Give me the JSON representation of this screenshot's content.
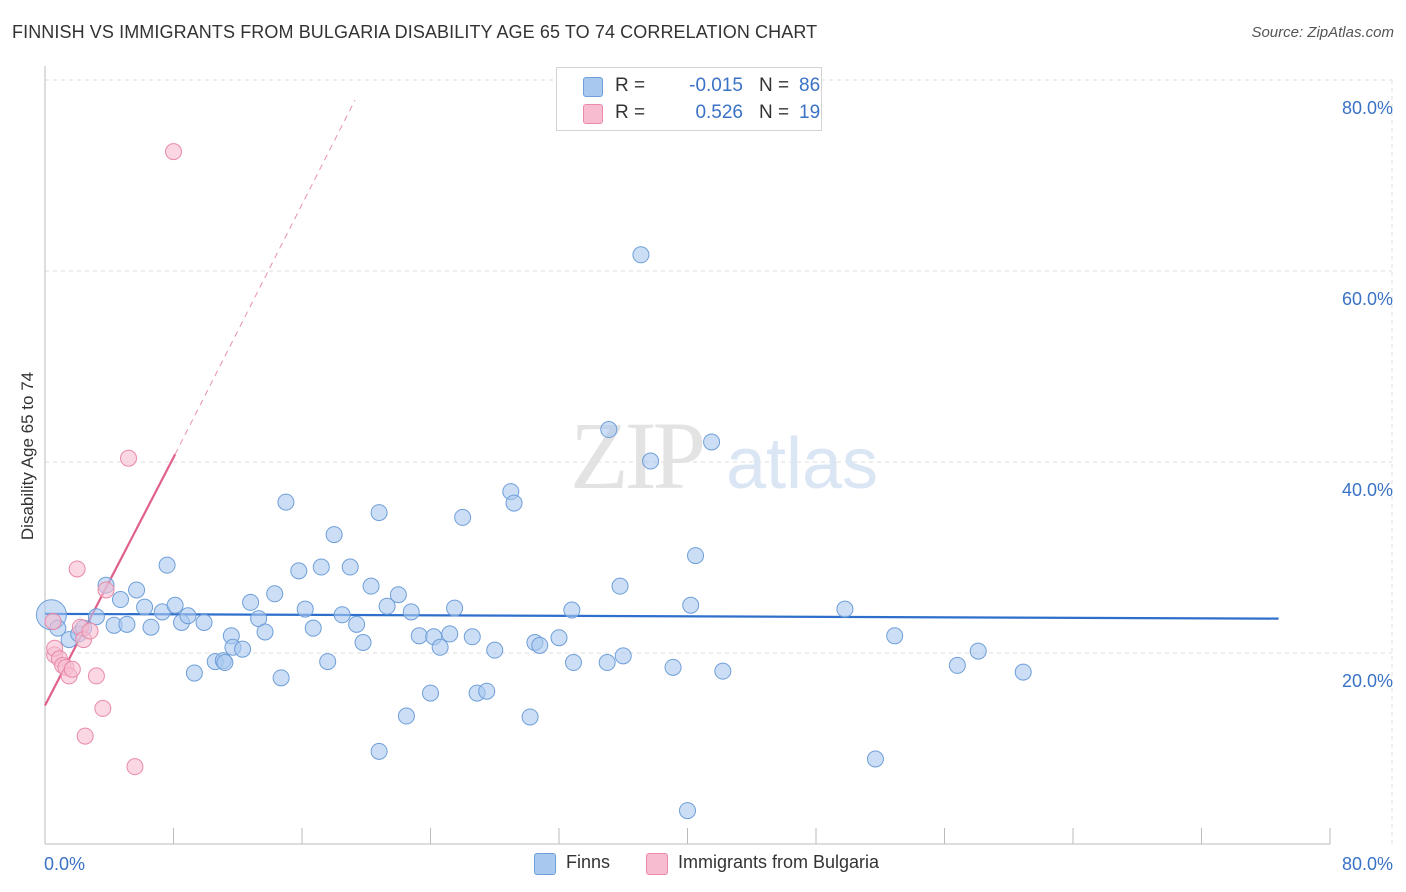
{
  "title": "FINNISH VS IMMIGRANTS FROM BULGARIA DISABILITY AGE 65 TO 74 CORRELATION CHART",
  "source": "Source: ZipAtlas.com",
  "watermark": {
    "zip": "ZIP",
    "atlas": "atlas"
  },
  "legend": {
    "rows": [
      {
        "r_label": "R =",
        "r_value": "-0.015",
        "n_label": "N =",
        "n_value": "86",
        "color": "#a8c8f0",
        "border": "#6f9fd8"
      },
      {
        "r_label": "R =",
        "r_value": "0.526",
        "n_label": "N =",
        "n_value": "19",
        "color": "#f7bcd0",
        "border": "#e88aa8"
      }
    ]
  },
  "bottom_legend": {
    "finns": "Finns",
    "bulgaria": "Immigrants from Bulgaria"
  },
  "chart_data": {
    "type": "scatter",
    "title": "FINNISH VS IMMIGRANTS FROM BULGARIA DISABILITY AGE 65 TO 74 CORRELATION CHART",
    "xlabel": "",
    "ylabel": "Disability Age 65 to 74",
    "xlim": [
      0,
      80
    ],
    "ylim": [
      0,
      80
    ],
    "x_tick_labels": [
      "0.0%",
      "80.0%"
    ],
    "y_tick_labels": [
      "20.0%",
      "40.0%",
      "60.0%",
      "80.0%"
    ],
    "y_ticks": [
      20,
      40,
      60,
      80
    ],
    "series": [
      {
        "name": "Finns",
        "color": "#a8c8f0",
        "stroke": "#6f9fd8",
        "trend": {
          "x": [
            0,
            76.8
          ],
          "y": [
            24.1,
            23.6
          ],
          "color": "#2f6fcc"
        },
        "points": [
          [
            0.4,
            24.0
          ],
          [
            0.8,
            22.6
          ],
          [
            1.5,
            21.4
          ],
          [
            2.1,
            22.0
          ],
          [
            2.4,
            22.6
          ],
          [
            3.2,
            23.8
          ],
          [
            3.8,
            27.1
          ],
          [
            4.3,
            22.9
          ],
          [
            4.7,
            25.6
          ],
          [
            5.1,
            23.0
          ],
          [
            5.7,
            26.6
          ],
          [
            6.2,
            24.8
          ],
          [
            6.6,
            22.7
          ],
          [
            7.3,
            24.3
          ],
          [
            7.6,
            29.2
          ],
          [
            8.1,
            25.0
          ],
          [
            8.5,
            23.2
          ],
          [
            8.9,
            23.9
          ],
          [
            9.3,
            17.9
          ],
          [
            9.9,
            23.2
          ],
          [
            10.6,
            19.1
          ],
          [
            11.1,
            19.2
          ],
          [
            11.6,
            21.8
          ],
          [
            11.7,
            20.6
          ],
          [
            12.3,
            20.4
          ],
          [
            12.8,
            25.3
          ],
          [
            13.3,
            23.6
          ],
          [
            13.7,
            22.2
          ],
          [
            14.3,
            26.2
          ],
          [
            14.7,
            17.4
          ],
          [
            15.0,
            35.8
          ],
          [
            15.8,
            28.6
          ],
          [
            16.2,
            24.6
          ],
          [
            16.7,
            22.6
          ],
          [
            17.2,
            29.0
          ],
          [
            17.6,
            19.1
          ],
          [
            18.0,
            32.4
          ],
          [
            18.5,
            24.0
          ],
          [
            19.0,
            29.0
          ],
          [
            19.4,
            23.0
          ],
          [
            19.8,
            21.1
          ],
          [
            20.3,
            27.0
          ],
          [
            20.8,
            9.7
          ],
          [
            21.3,
            24.9
          ],
          [
            20.8,
            34.7
          ],
          [
            22.0,
            26.1
          ],
          [
            22.5,
            13.4
          ],
          [
            22.8,
            24.3
          ],
          [
            23.3,
            21.8
          ],
          [
            24.0,
            15.8
          ],
          [
            24.2,
            21.7
          ],
          [
            24.6,
            20.6
          ],
          [
            25.2,
            22.0
          ],
          [
            25.5,
            24.7
          ],
          [
            26.0,
            34.2
          ],
          [
            26.6,
            21.7
          ],
          [
            26.9,
            15.8
          ],
          [
            27.5,
            16.0
          ],
          [
            28.0,
            20.3
          ],
          [
            29.0,
            36.9
          ],
          [
            29.2,
            35.7
          ],
          [
            30.2,
            13.3
          ],
          [
            30.5,
            21.1
          ],
          [
            30.8,
            20.8
          ],
          [
            32.0,
            21.6
          ],
          [
            32.9,
            19.0
          ],
          [
            32.8,
            24.5
          ],
          [
            35.0,
            19.0
          ],
          [
            35.1,
            43.4
          ],
          [
            35.8,
            27.0
          ],
          [
            36.0,
            19.7
          ],
          [
            37.7,
            40.1
          ],
          [
            39.1,
            18.5
          ],
          [
            40.0,
            3.5
          ],
          [
            40.5,
            30.2
          ],
          [
            41.5,
            42.1
          ],
          [
            42.2,
            18.1
          ],
          [
            49.8,
            24.6
          ],
          [
            51.7,
            8.9
          ],
          [
            52.9,
            21.8
          ],
          [
            56.8,
            18.7
          ],
          [
            58.1,
            20.2
          ],
          [
            60.9,
            18.0
          ],
          [
            40.2,
            25.0
          ],
          [
            37.1,
            61.7
          ],
          [
            11.2,
            19.0
          ]
        ]
      },
      {
        "name": "Immigrants from Bulgaria",
        "color": "#f7bcd0",
        "stroke": "#e88aa8",
        "trend": {
          "x": [
            0,
            8.1
          ],
          "y": [
            14.5,
            40.8
          ],
          "color": "#e0608a",
          "dash_to": [
            19.3,
            77.9
          ]
        },
        "points": [
          [
            0.5,
            23.3
          ],
          [
            0.6,
            19.8
          ],
          [
            0.6,
            20.5
          ],
          [
            0.9,
            19.4
          ],
          [
            1.1,
            18.7
          ],
          [
            1.3,
            18.5
          ],
          [
            1.5,
            17.6
          ],
          [
            1.7,
            18.3
          ],
          [
            2.0,
            28.8
          ],
          [
            2.2,
            22.7
          ],
          [
            2.4,
            21.4
          ],
          [
            2.5,
            11.3
          ],
          [
            2.8,
            22.3
          ],
          [
            3.2,
            17.6
          ],
          [
            3.6,
            14.2
          ],
          [
            3.8,
            26.6
          ],
          [
            5.2,
            40.4
          ],
          [
            5.6,
            8.1
          ],
          [
            8.0,
            72.5
          ]
        ]
      }
    ]
  }
}
